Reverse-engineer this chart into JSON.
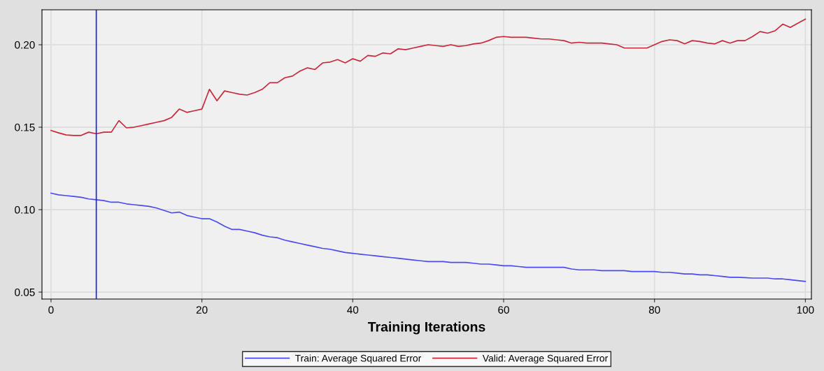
{
  "chart_data": {
    "type": "line",
    "xlabel": "Training Iterations",
    "x": [
      0,
      1,
      2,
      3,
      4,
      5,
      6,
      7,
      8,
      9,
      10,
      11,
      12,
      13,
      14,
      15,
      16,
      17,
      18,
      19,
      20,
      21,
      22,
      23,
      24,
      25,
      26,
      27,
      28,
      29,
      30,
      31,
      32,
      33,
      34,
      35,
      36,
      37,
      38,
      39,
      40,
      41,
      42,
      43,
      44,
      45,
      46,
      47,
      48,
      49,
      50,
      51,
      52,
      53,
      54,
      55,
      56,
      57,
      58,
      59,
      60,
      61,
      62,
      63,
      64,
      65,
      66,
      67,
      68,
      69,
      70,
      71,
      72,
      73,
      74,
      75,
      76,
      77,
      78,
      79,
      80,
      81,
      82,
      83,
      84,
      85,
      86,
      87,
      88,
      89,
      90,
      91,
      92,
      93,
      94,
      95,
      96,
      97,
      98,
      99,
      100
    ],
    "series": [
      {
        "name": "Train: Average Squared Error",
        "color": "#4a4aee",
        "values": [
          0.11,
          0.109,
          0.1085,
          0.108,
          0.1075,
          0.1065,
          0.106,
          0.1055,
          0.1045,
          0.1045,
          0.1035,
          0.103,
          0.1025,
          0.102,
          0.101,
          0.0995,
          0.098,
          0.0985,
          0.0965,
          0.0955,
          0.0945,
          0.0945,
          0.0925,
          0.09,
          0.088,
          0.088,
          0.087,
          0.086,
          0.0845,
          0.0835,
          0.083,
          0.0815,
          0.0805,
          0.0795,
          0.0785,
          0.0775,
          0.0765,
          0.076,
          0.075,
          0.074,
          0.0735,
          0.073,
          0.0725,
          0.072,
          0.0715,
          0.071,
          0.0705,
          0.07,
          0.0695,
          0.069,
          0.0685,
          0.0685,
          0.0685,
          0.068,
          0.068,
          0.068,
          0.0675,
          0.067,
          0.067,
          0.0665,
          0.066,
          0.066,
          0.0655,
          0.065,
          0.065,
          0.065,
          0.065,
          0.065,
          0.065,
          0.064,
          0.0635,
          0.0635,
          0.0635,
          0.063,
          0.063,
          0.063,
          0.063,
          0.0625,
          0.0625,
          0.0625,
          0.0625,
          0.062,
          0.062,
          0.0615,
          0.061,
          0.061,
          0.0605,
          0.0605,
          0.06,
          0.0595,
          0.059,
          0.059,
          0.0588,
          0.0585,
          0.0585,
          0.0585,
          0.058,
          0.058,
          0.0575,
          0.057,
          0.0565
        ]
      },
      {
        "name": "Valid: Average Squared Error",
        "color": "#c8283c",
        "values": [
          0.148,
          0.1466,
          0.1453,
          0.145,
          0.145,
          0.147,
          0.146,
          0.147,
          0.147,
          0.154,
          0.1496,
          0.15,
          0.151,
          0.152,
          0.153,
          0.154,
          0.156,
          0.161,
          0.159,
          0.16,
          0.161,
          0.173,
          0.166,
          0.172,
          0.171,
          0.17,
          0.1695,
          0.171,
          0.173,
          0.177,
          0.177,
          0.18,
          0.181,
          0.184,
          0.186,
          0.185,
          0.189,
          0.1895,
          0.191,
          0.189,
          0.1915,
          0.19,
          0.1935,
          0.193,
          0.195,
          0.1945,
          0.1975,
          0.197,
          0.198,
          0.199,
          0.2,
          0.1995,
          0.199,
          0.2,
          0.199,
          0.1995,
          0.2005,
          0.201,
          0.2025,
          0.2045,
          0.205,
          0.2045,
          0.2045,
          0.2045,
          0.204,
          0.2035,
          0.2035,
          0.203,
          0.2025,
          0.201,
          0.2015,
          0.201,
          0.201,
          0.201,
          0.2005,
          0.2,
          0.198,
          0.198,
          0.198,
          0.198,
          0.2,
          0.202,
          0.203,
          0.2025,
          0.2005,
          0.2025,
          0.202,
          0.201,
          0.2005,
          0.2025,
          0.201,
          0.2025,
          0.2025,
          0.205,
          0.208,
          0.207,
          0.2085,
          0.2125,
          0.2105,
          0.213,
          0.2155
        ]
      }
    ],
    "xlim": [
      -1.2,
      100.8
    ],
    "xticks": [
      0,
      20,
      40,
      60,
      80,
      100
    ],
    "ylim": [
      0.0458,
      0.2212
    ],
    "yticks": [
      {
        "value": 0.05,
        "label": "0.05"
      },
      {
        "value": 0.1,
        "label": "0.10"
      },
      {
        "value": 0.15,
        "label": "0.15"
      },
      {
        "value": 0.2,
        "label": "0.20"
      }
    ],
    "ref_lines": [
      {
        "axis": "x",
        "value": 6,
        "color": "#2020e0"
      }
    ],
    "grid": true,
    "legend": "bottom",
    "marker": "none",
    "line_style": "solid"
  }
}
